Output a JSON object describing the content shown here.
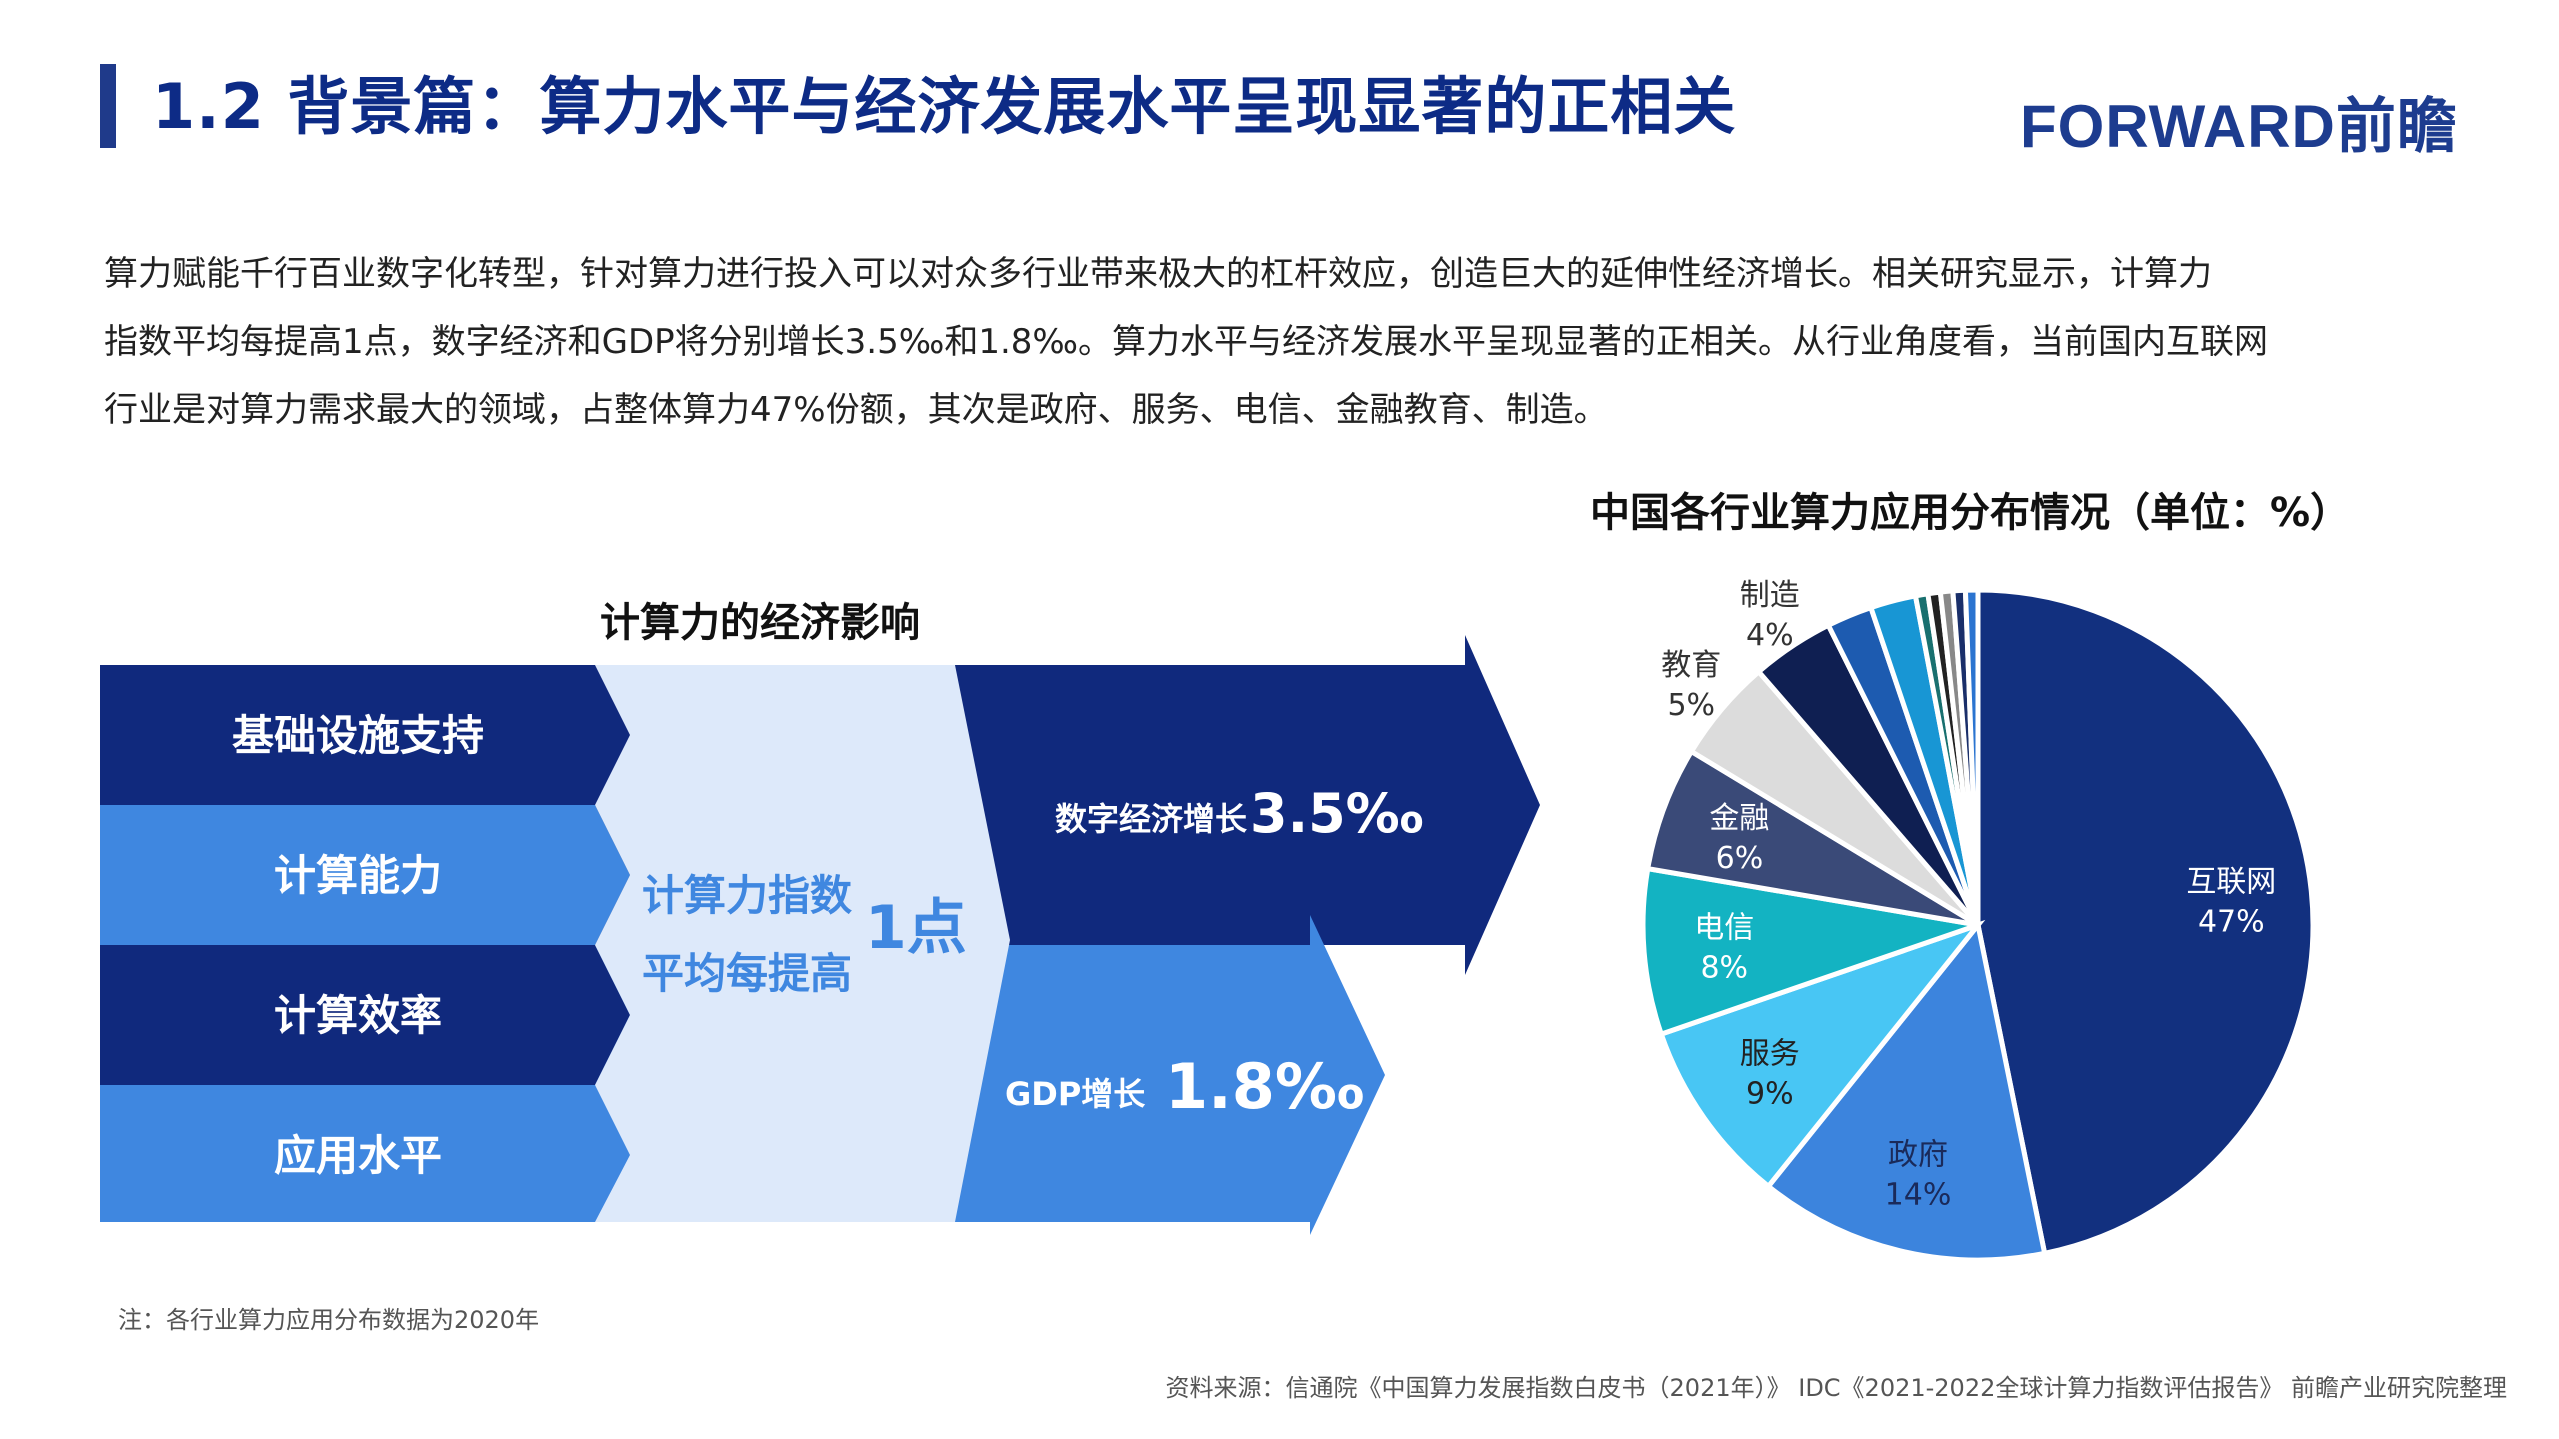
{
  "header": {
    "title": "1.2 背景篇：算力水平与经济发展水平呈现显著的正相关",
    "logo": "FORWARD前瞻"
  },
  "intro": {
    "lines": [
      "算力赋能千行百业数字化转型，针对算力进行投入可以对众多行业带来极大的杠杆效应，创造巨大的延伸性经济增长。相关研究显示，计算力",
      "指数平均每提高1点，数字经济和GDP将分别增长3.5‰和1.8‰。算力水平与经济发展水平呈现显著的正相关。从行业角度看，当前国内互联网",
      "行业是对算力需求最大的领域，占整体算力47%份额，其次是政府、服务、电信、金融教育、制造。"
    ]
  },
  "diagram": {
    "title": "计算力的经济影响",
    "factors": [
      "基础设施支持",
      "计算能力",
      "计算效率",
      "应用水平"
    ],
    "index_line1": "计算力指数",
    "index_line2": "平均每提高",
    "index_value": "1点",
    "digital_label": "数字经济增长",
    "digital_value": "3.5‰",
    "gdp_label": "GDP增长",
    "gdp_value": "1.8‰",
    "colors": {
      "dark": "#10297d",
      "light": "#3f87e0",
      "pale": "#dde9fa"
    }
  },
  "chart_data": {
    "type": "pie",
    "title": "中国各行业算力应用分布情况（单位：%）",
    "slices": [
      {
        "label": "互联网",
        "value": 47,
        "display": "47%",
        "color": "#12307f"
      },
      {
        "label": "政府",
        "value": 14,
        "display": "14%",
        "color": "#3c84dd"
      },
      {
        "label": "服务",
        "value": 9,
        "display": "9%",
        "color": "#48c6f4"
      },
      {
        "label": "电信",
        "value": 8,
        "display": "8%",
        "color": "#13b3c2"
      },
      {
        "label": "金融",
        "value": 6,
        "display": "6%",
        "color": "#3a4a78"
      },
      {
        "label": "教育",
        "value": 5,
        "display": "5%",
        "color": "#dcdcdc"
      },
      {
        "label": "制造",
        "value": 4,
        "display": "4%",
        "color": "#0f1f52"
      },
      {
        "label": "",
        "value": 2.2,
        "display": "",
        "color": "#1d5bb0"
      },
      {
        "label": "",
        "value": 2.2,
        "display": "",
        "color": "#1896d4"
      },
      {
        "label": "",
        "value": 0.6,
        "display": "",
        "color": "#19706f"
      },
      {
        "label": "",
        "value": 0.6,
        "display": "",
        "color": "#222222"
      },
      {
        "label": "",
        "value": 0.6,
        "display": "",
        "color": "#888888"
      },
      {
        "label": "",
        "value": 0.6,
        "display": "",
        "color": "#1a2f6a"
      },
      {
        "label": "",
        "value": 0.6,
        "display": "",
        "color": "#2b74d0"
      }
    ]
  },
  "footer": {
    "note": "注：各行业算力应用分布数据为2020年",
    "source": "资料来源：信通院《中国算力发展指数白皮书（2021年）》 IDC《2021-2022全球计算力指数评估报告》 前瞻产业研究院整理"
  }
}
